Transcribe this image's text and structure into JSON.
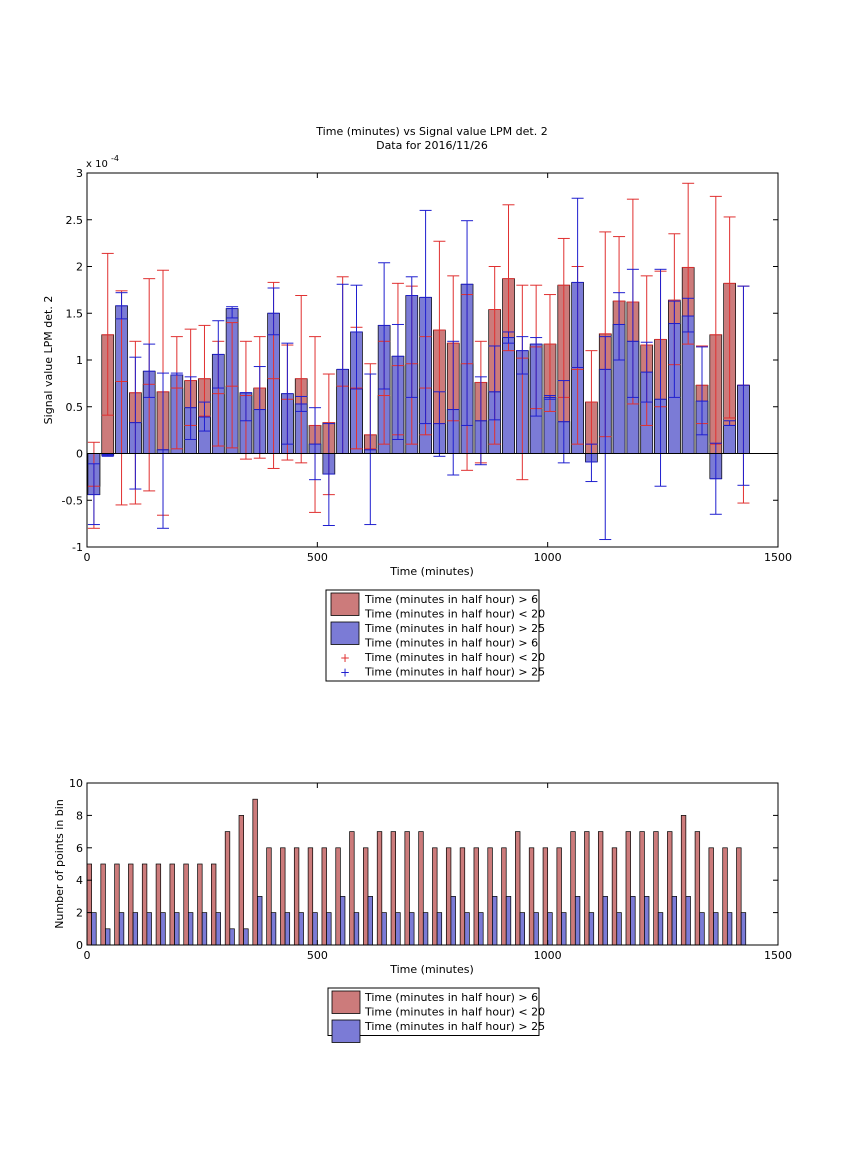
{
  "colors": {
    "red_bar": "#cc7b7b",
    "blue_bar": "#7b7bd6",
    "red_err": "#e03030",
    "blue_err": "#1f1fcf",
    "axis": "#000000"
  },
  "chart_data": [
    {
      "type": "bar",
      "title": "Time (minutes) vs Signal value LPM det. 2",
      "subtitle": "Data for 2016/11/26",
      "xlabel": "Time (minutes)",
      "ylabel": "Signal value LPM det. 2",
      "y_exponent_label": "x 10",
      "y_exponent_power": "-4",
      "xlim": [
        0,
        1500
      ],
      "ylim": [
        -1,
        3
      ],
      "x_ticks": [
        "0",
        "500",
        "1000",
        "1500"
      ],
      "y_ticks": [
        "-1",
        "-0.5",
        "0",
        "0.5",
        "1",
        "1.5",
        "2",
        "2.5",
        "3"
      ],
      "x_tick_values": [
        0,
        500,
        1000,
        1500
      ],
      "y_tick_values": [
        -1,
        -0.5,
        0,
        0.5,
        1,
        1.5,
        2,
        2.5,
        3
      ],
      "legend": {
        "placement": "below",
        "entries": [
          {
            "label": "Time (minutes in half hour) > 6",
            "kind": "bar",
            "series": "red"
          },
          {
            "label": "Time (minutes in half hour) < 20",
            "kind": "none",
            "series": "red"
          },
          {
            "label": "Time (minutes in half hour) > 25",
            "kind": "bar",
            "series": "blue"
          },
          {
            "label": "Time (minutes in half hour) > 6",
            "kind": "none",
            "series": "red"
          },
          {
            "label": "Time (minutes in half hour) < 20",
            "kind": "plus",
            "series": "red"
          },
          {
            "label": "Time (minutes in half hour) > 25",
            "kind": "plus",
            "series": "blue"
          }
        ]
      },
      "series": [
        {
          "color_key": "red",
          "x": [
            15,
            45,
            75,
            105,
            135,
            165,
            195,
            225,
            255,
            285,
            315,
            345,
            375,
            405,
            435,
            465,
            495,
            525,
            555,
            585,
            615,
            645,
            675,
            705,
            735,
            765,
            795,
            825,
            855,
            885,
            915,
            945,
            975,
            1005,
            1035,
            1065,
            1095,
            1125,
            1155,
            1185,
            1215,
            1245,
            1275,
            1305,
            1335,
            1365,
            1395,
            1425
          ],
          "values": [
            -0.35,
            1.27,
            0.77,
            0.65,
            0.74,
            0.66,
            0.7,
            0.78,
            0.8,
            0.64,
            0.72,
            0.62,
            0.7,
            0.8,
            0.58,
            0.8,
            0.3,
            0.33,
            0.72,
            0.7,
            0.2,
            0.62,
            0.94,
            0.96,
            0.7,
            1.32,
            1.18,
            0.96,
            0.76,
            1.54,
            1.87,
            1.02,
            1.14,
            1.17,
            1.8,
            0.9,
            0.55,
            1.28,
            1.63,
            1.62,
            1.16,
            1.22,
            1.64,
            1.99,
            0.73,
            1.27,
            1.82,
            0.73
          ],
          "err_low": [
            -0.8,
            0.41,
            -0.55,
            -0.54,
            -0.4,
            -0.66,
            0.05,
            0.3,
            0.4,
            0.08,
            0.06,
            -0.06,
            -0.05,
            -0.16,
            -0.07,
            -0.1,
            -0.63,
            -0.44,
            0.0,
            0.05,
            0.05,
            0.1,
            0.2,
            0.1,
            0.2,
            0.32,
            0.35,
            -0.18,
            -0.1,
            0.1,
            1.1,
            -0.28,
            0.48,
            0.45,
            0.6,
            0.1,
            0.1,
            0.18,
            1.0,
            0.53,
            0.3,
            0.5,
            0.95,
            1.17,
            0.32,
            0.1,
            0.38,
            -0.53
          ],
          "err_high": [
            0.12,
            2.14,
            1.74,
            1.2,
            1.87,
            1.96,
            1.25,
            1.33,
            1.37,
            1.2,
            1.4,
            1.2,
            1.25,
            1.83,
            1.16,
            1.69,
            1.25,
            0.85,
            1.89,
            1.35,
            0.96,
            1.2,
            1.82,
            1.79,
            1.25,
            2.27,
            1.9,
            1.7,
            1.2,
            2.0,
            2.66,
            1.8,
            1.8,
            1.7,
            2.3,
            2.0,
            1.1,
            2.37,
            2.32,
            2.72,
            1.9,
            1.95,
            2.35,
            2.89,
            1.15,
            2.75,
            2.53,
            1.79
          ]
        },
        {
          "color_key": "blue",
          "x": [
            15,
            45,
            75,
            105,
            135,
            165,
            195,
            225,
            255,
            285,
            315,
            345,
            375,
            405,
            435,
            465,
            495,
            525,
            555,
            585,
            615,
            645,
            675,
            705,
            735,
            765,
            795,
            825,
            855,
            885,
            915,
            945,
            975,
            1005,
            1035,
            1065,
            1095,
            1125,
            1155,
            1185,
            1215,
            1245,
            1275,
            1305,
            1335,
            1365,
            1395,
            1425
          ],
          "values": [
            -0.44,
            -0.02,
            1.58,
            0.33,
            0.88,
            0.04,
            0.84,
            0.49,
            0.39,
            1.06,
            1.55,
            0.65,
            0.47,
            1.5,
            0.64,
            0.53,
            0.1,
            -0.22,
            0.9,
            1.3,
            0.04,
            1.37,
            1.04,
            1.69,
            1.67,
            0.32,
            0.47,
            1.81,
            0.35,
            0.66,
            1.24,
            1.1,
            1.17,
            0.6,
            0.34,
            1.83,
            -0.09,
            0.9,
            1.38,
            1.2,
            0.87,
            0.58,
            1.39,
            1.47,
            0.56,
            -0.27,
            0.3,
            0.73
          ],
          "err_low": [
            -0.76,
            -0.03,
            1.44,
            -0.38,
            0.6,
            -0.8,
            0.84,
            0.15,
            0.24,
            0.7,
            1.45,
            0.35,
            0.0,
            1.27,
            0.1,
            0.45,
            -0.28,
            -0.77,
            0.0,
            0.69,
            -0.76,
            0.69,
            0.15,
            0.6,
            0.32,
            -0.03,
            -0.23,
            0.3,
            -0.12,
            0.36,
            1.18,
            0.85,
            0.4,
            0.58,
            -0.1,
            0.92,
            -0.3,
            -0.92,
            1.0,
            0.6,
            0.55,
            -0.35,
            0.6,
            1.3,
            0.2,
            -0.65,
            0.3,
            -0.34
          ],
          "err_high": [
            -0.11,
            -0.01,
            1.72,
            1.03,
            1.17,
            0.86,
            0.86,
            0.82,
            0.55,
            1.42,
            1.57,
            0.65,
            0.93,
            1.77,
            1.18,
            0.61,
            0.49,
            0.32,
            1.81,
            1.8,
            0.85,
            2.04,
            1.38,
            1.89,
            2.6,
            0.66,
            1.2,
            2.49,
            0.82,
            1.15,
            1.3,
            1.25,
            1.24,
            0.62,
            0.78,
            2.73,
            0.1,
            1.25,
            1.72,
            1.97,
            1.19,
            1.97,
            1.63,
            1.66,
            1.14,
            0.11,
            0.35,
            1.79
          ]
        }
      ]
    },
    {
      "type": "bar",
      "xlabel": "Time (minutes)",
      "ylabel": "Number of points in bin",
      "xlim": [
        0,
        1500
      ],
      "ylim": [
        0,
        10
      ],
      "x_ticks": [
        "0",
        "500",
        "1000",
        "1500"
      ],
      "y_ticks": [
        "0",
        "2",
        "4",
        "6",
        "8",
        "10"
      ],
      "x_tick_values": [
        0,
        500,
        1000,
        1500
      ],
      "y_tick_values": [
        0,
        2,
        4,
        6,
        8,
        10
      ],
      "legend": {
        "placement": "below",
        "entries": [
          {
            "label": "Time (minutes in half hour) > 6",
            "kind": "bar",
            "series": "red"
          },
          {
            "label": "Time (minutes in half hour) < 20",
            "kind": "none",
            "series": "red"
          },
          {
            "label": "Time (minutes in half hour) > 25",
            "kind": "bar",
            "series": "blue"
          }
        ]
      },
      "series": [
        {
          "color_key": "red",
          "x": [
            5,
            35,
            65,
            95,
            125,
            155,
            185,
            215,
            245,
            275,
            305,
            335,
            365,
            395,
            425,
            455,
            485,
            515,
            545,
            575,
            605,
            635,
            665,
            695,
            725,
            755,
            785,
            815,
            845,
            875,
            905,
            935,
            965,
            995,
            1025,
            1055,
            1085,
            1115,
            1145,
            1175,
            1205,
            1235,
            1265,
            1295,
            1325,
            1355,
            1385,
            1415
          ],
          "values": [
            5,
            5,
            5,
            5,
            5,
            5,
            5,
            5,
            5,
            5,
            7,
            8,
            9,
            6,
            6,
            6,
            6,
            6,
            6,
            7,
            6,
            7,
            7,
            7,
            7,
            6,
            6,
            6,
            6,
            6,
            6,
            7,
            6,
            6,
            6,
            7,
            7,
            7,
            6,
            7,
            7,
            7,
            7,
            8,
            7,
            6,
            6,
            6
          ]
        },
        {
          "color_key": "blue",
          "x": [
            15,
            45,
            75,
            105,
            135,
            165,
            195,
            225,
            255,
            285,
            315,
            345,
            375,
            405,
            435,
            465,
            495,
            525,
            555,
            585,
            615,
            645,
            675,
            705,
            735,
            765,
            795,
            825,
            855,
            885,
            915,
            945,
            975,
            1005,
            1035,
            1065,
            1095,
            1125,
            1155,
            1185,
            1215,
            1245,
            1275,
            1305,
            1335,
            1365,
            1395,
            1425
          ],
          "values": [
            2,
            1,
            2,
            2,
            2,
            2,
            2,
            2,
            2,
            2,
            1,
            1,
            3,
            2,
            2,
            2,
            2,
            2,
            3,
            2,
            3,
            2,
            2,
            2,
            2,
            2,
            3,
            2,
            2,
            3,
            3,
            2,
            2,
            2,
            2,
            3,
            2,
            3,
            2,
            3,
            3,
            2,
            3,
            3,
            2,
            2,
            2,
            2
          ]
        }
      ]
    }
  ]
}
